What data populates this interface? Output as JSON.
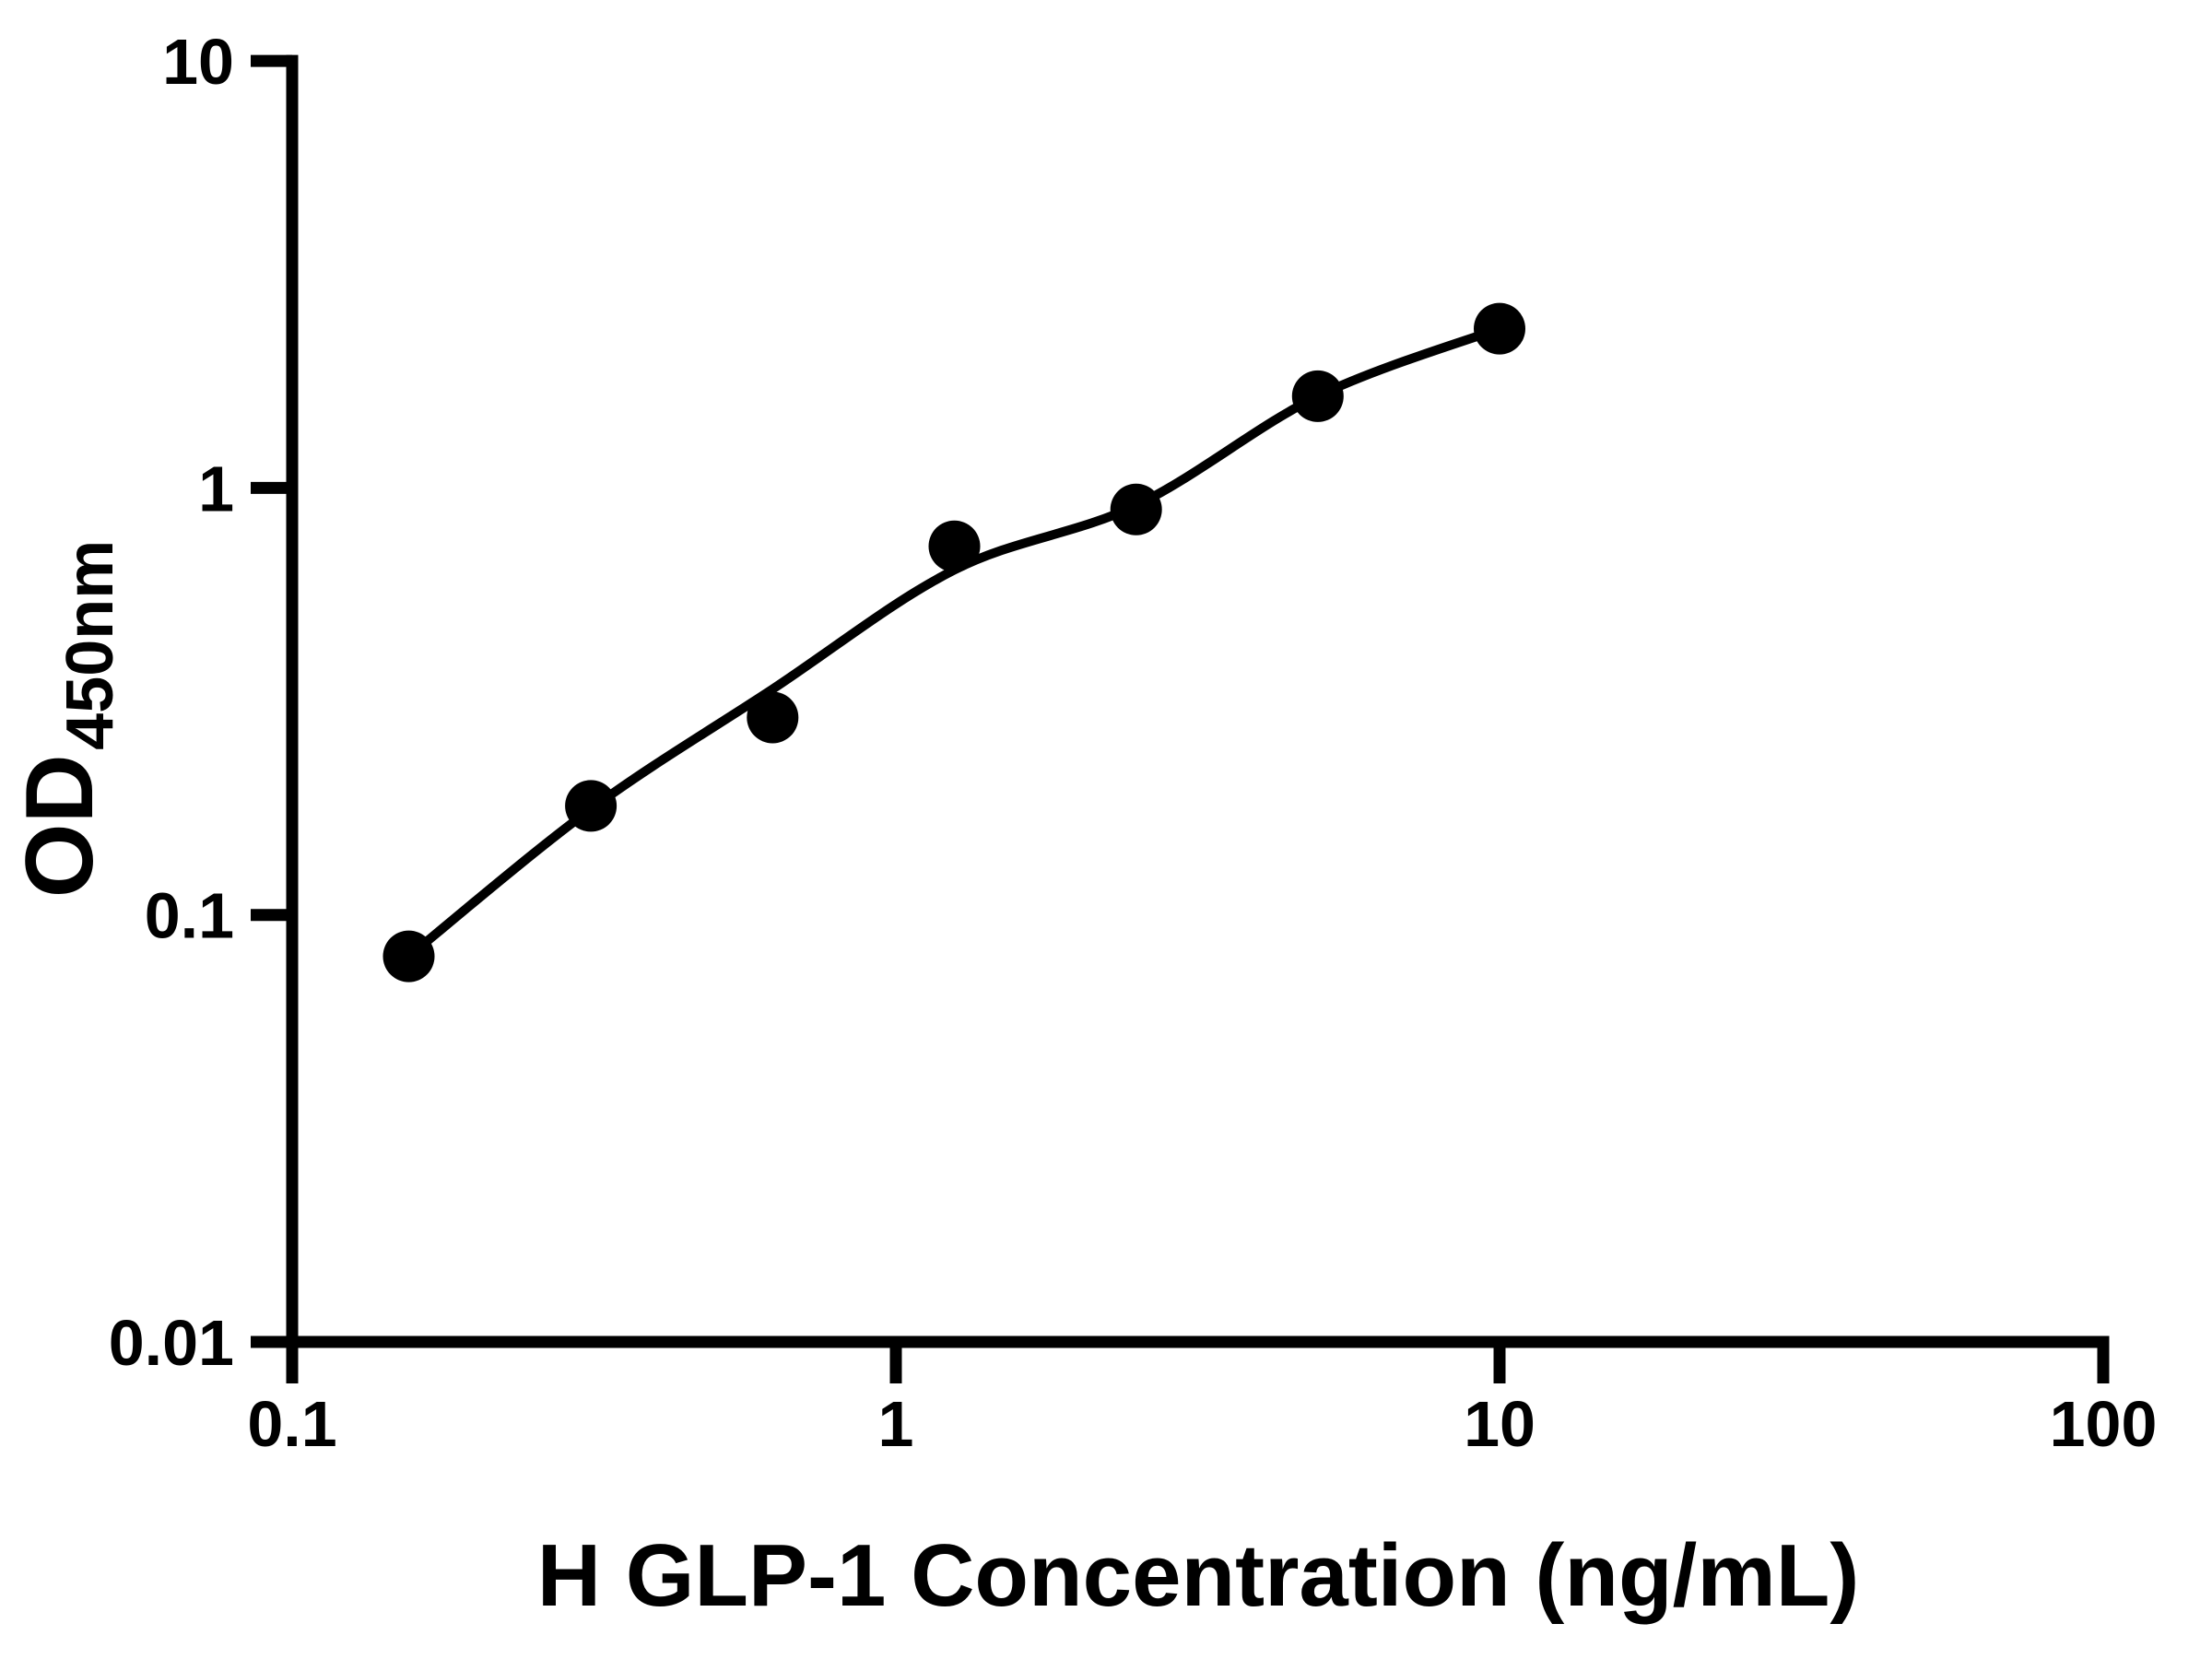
{
  "chart_data": {
    "type": "scatter",
    "title": "",
    "xlabel": "H GLP-1 Concentration (ng/mL)",
    "ylabel_main": "OD",
    "ylabel_sub": "450nm",
    "x_scale": "log",
    "y_scale": "log",
    "xlim": [
      0.1,
      100
    ],
    "ylim": [
      0.01,
      10
    ],
    "grid": false,
    "legend": null,
    "x_ticks": [
      {
        "value": 0.1,
        "label": "0.1"
      },
      {
        "value": 1,
        "label": "1"
      },
      {
        "value": 10,
        "label": "10"
      },
      {
        "value": 100,
        "label": "100"
      }
    ],
    "y_ticks": [
      {
        "value": 0.01,
        "label": "0.01"
      },
      {
        "value": 0.1,
        "label": "0.1"
      },
      {
        "value": 1,
        "label": "1"
      },
      {
        "value": 10,
        "label": "10"
      }
    ],
    "points": [
      {
        "x": 0.156,
        "y": 0.08
      },
      {
        "x": 0.3125,
        "y": 0.18
      },
      {
        "x": 0.625,
        "y": 0.29
      },
      {
        "x": 1.25,
        "y": 0.73
      },
      {
        "x": 2.5,
        "y": 0.89
      },
      {
        "x": 5,
        "y": 1.64
      },
      {
        "x": 10,
        "y": 2.36
      }
    ],
    "fit_line": [
      {
        "x": 0.156,
        "y": 0.08
      },
      {
        "x": 0.3125,
        "y": 0.177
      },
      {
        "x": 0.625,
        "y": 0.338
      },
      {
        "x": 1.25,
        "y": 0.643
      },
      {
        "x": 2.5,
        "y": 0.91
      },
      {
        "x": 5,
        "y": 1.64
      },
      {
        "x": 10,
        "y": 2.36
      }
    ],
    "colors": {
      "points": "#000000",
      "line": "#000000",
      "axis": "#000000",
      "text": "#000000",
      "background": "#ffffff"
    }
  }
}
